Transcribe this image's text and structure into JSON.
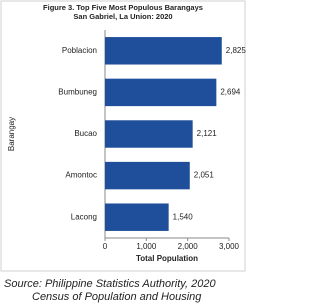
{
  "chart_data": {
    "type": "hbar",
    "title": "Figure 3. Top Five Most Populous Barangays",
    "subtitle": "San Gabriel, La Union: 2020",
    "x_label": "Total Population",
    "y_label": "Barangay",
    "categories": [
      "Poblacion",
      "Bumbuneg",
      "Bucao",
      "Amontoc",
      "Lacong"
    ],
    "values": [
      2825,
      2694,
      2121,
      2051,
      1540
    ],
    "value_labels": [
      "2,825",
      "2,694",
      "2,121",
      "2,051",
      "1,540"
    ],
    "color": "#1f4e9a",
    "xlim": [
      0,
      3000
    ],
    "xticks": [
      0,
      {
        "value": 1000,
        "label": "1,000"
      },
      {
        "value": 2000,
        "label": "2,000"
      },
      {
        "value": 3000,
        "label": "3,000"
      }
    ],
    "grid": false,
    "source": [
      "Source: Philippine Statistics Authority, 2020",
      "Census of Population and Housing"
    ]
  }
}
